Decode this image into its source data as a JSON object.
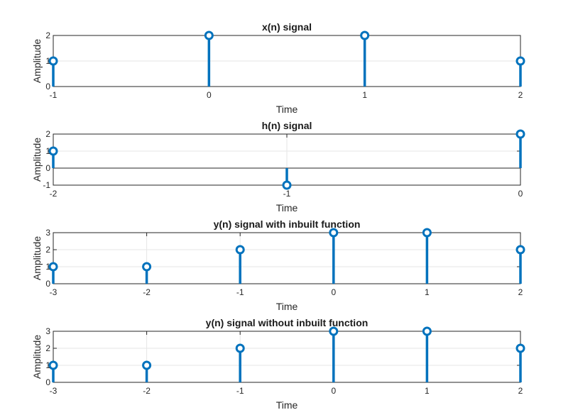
{
  "chart_data": [
    {
      "type": "stem",
      "title": "x(n) signal",
      "xlabel": "Time",
      "ylabel": "Amplitude",
      "xlim": [
        -1,
        2
      ],
      "ylim": [
        0,
        2
      ],
      "xticks": [
        "-1",
        "0",
        "1",
        "2"
      ],
      "yticks": [
        "0",
        "1",
        "2"
      ],
      "x": [
        -1,
        0,
        1,
        2
      ],
      "y": [
        1,
        2,
        2,
        1
      ],
      "grid": true
    },
    {
      "type": "stem",
      "title": "h(n) signal",
      "xlabel": "Time",
      "ylabel": "Amplitude",
      "xlim": [
        -2,
        0
      ],
      "ylim": [
        -1,
        2
      ],
      "xticks": [
        "-2",
        "-1",
        "0"
      ],
      "yticks": [
        "-1",
        "0",
        "1",
        "2"
      ],
      "x": [
        -2,
        -1,
        0
      ],
      "y": [
        1,
        -1,
        2
      ],
      "grid": true
    },
    {
      "type": "stem",
      "title": "y(n) signal with inbuilt function",
      "xlabel": "Time",
      "ylabel": "Amplitude",
      "xlim": [
        -3,
        2
      ],
      "ylim": [
        0,
        3
      ],
      "xticks": [
        "-3",
        "-2",
        "-1",
        "0",
        "1",
        "2"
      ],
      "yticks": [
        "0",
        "1",
        "2",
        "3"
      ],
      "x": [
        -3,
        -2,
        -1,
        0,
        1,
        2
      ],
      "y": [
        1,
        1,
        2,
        3,
        3,
        2
      ],
      "grid": true
    },
    {
      "type": "stem",
      "title": "y(n) signal without inbuilt function",
      "xlabel": "Time",
      "ylabel": "Amplitude",
      "xlim": [
        -3,
        2
      ],
      "ylim": [
        0,
        3
      ],
      "xticks": [
        "-3",
        "-2",
        "-1",
        "0",
        "1",
        "2"
      ],
      "yticks": [
        "0",
        "1",
        "2",
        "3"
      ],
      "x": [
        -3,
        -2,
        -1,
        0,
        1,
        2
      ],
      "y": [
        1,
        1,
        2,
        3,
        3,
        2
      ],
      "grid": true
    }
  ],
  "colors": {
    "stem": "#0072bd",
    "axis": "#262626",
    "grid": "#e6e6e6",
    "title": "#1a1a1a"
  }
}
